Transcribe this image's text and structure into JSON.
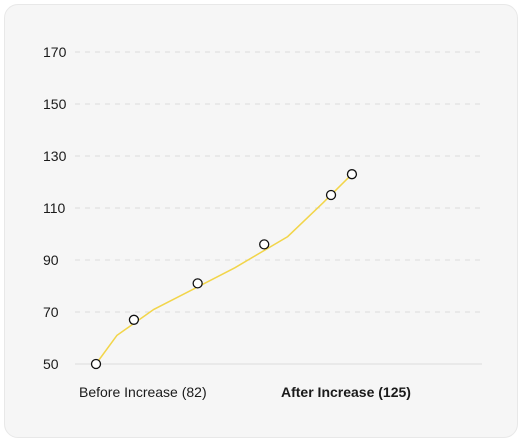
{
  "chart_data": {
    "type": "line",
    "y_ticks": [
      50,
      70,
      90,
      110,
      130,
      150,
      170
    ],
    "ylim": [
      50,
      170
    ],
    "grid": true,
    "categories": [
      {
        "label": "Before Increase (82)",
        "bold": false
      },
      {
        "label": "After Increase (125)",
        "bold": true
      }
    ],
    "points": [
      {
        "x": 0.0,
        "y": 50
      },
      {
        "x": 0.147,
        "y": 67
      },
      {
        "x": 0.394,
        "y": 81
      },
      {
        "x": 0.652,
        "y": 96
      },
      {
        "x": 0.911,
        "y": 115
      },
      {
        "x": 0.992,
        "y": 123
      }
    ],
    "trend_line": [
      {
        "x": 0.0,
        "y": 50
      },
      {
        "x": 0.081,
        "y": 61
      },
      {
        "x": 0.224,
        "y": 71
      },
      {
        "x": 0.362,
        "y": 78
      },
      {
        "x": 0.538,
        "y": 87
      },
      {
        "x": 0.743,
        "y": 99
      },
      {
        "x": 0.88,
        "y": 112
      },
      {
        "x": 0.992,
        "y": 123
      }
    ],
    "colors": {
      "line": "#f2d54a",
      "marker_stroke": "#111111",
      "marker_fill": "#ffffff"
    }
  }
}
